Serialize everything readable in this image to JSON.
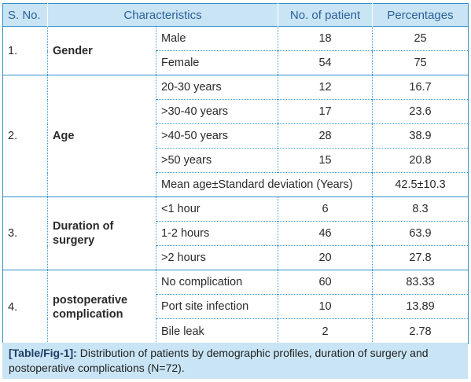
{
  "header": {
    "sno": "S. No.",
    "characteristics": "Characteristics",
    "patients": "No. of patient",
    "percentages": "Percentages"
  },
  "groups": {
    "gender": {
      "sno": "1.",
      "label": "Gender",
      "rows": [
        {
          "sub": "Male",
          "n": "18",
          "pct": "25"
        },
        {
          "sub": "Female",
          "n": "54",
          "pct": "75"
        }
      ]
    },
    "age": {
      "sno": "2.",
      "label": "Age",
      "rows": [
        {
          "sub": "20-30 years",
          "n": "12",
          "pct": "16.7"
        },
        {
          "sub": ">30-40 years",
          "n": "17",
          "pct": "23.6"
        },
        {
          "sub": ">40-50 years",
          "n": "28",
          "pct": "38.9"
        },
        {
          "sub": ">50 years",
          "n": "15",
          "pct": "20.8"
        }
      ],
      "mean_label": "Mean age±Standard deviation (Years)",
      "mean_value": "42.5±10.3"
    },
    "duration": {
      "sno": "3.",
      "label": "Duration of surgery",
      "rows": [
        {
          "sub": "<1 hour",
          "n": "6",
          "pct": "8.3"
        },
        {
          "sub": "1-2 hours",
          "n": "46",
          "pct": "63.9"
        },
        {
          "sub": ">2 hours",
          "n": "20",
          "pct": "27.8"
        }
      ]
    },
    "complication": {
      "sno": "4.",
      "label": "postoperative complication",
      "rows": [
        {
          "sub": "No complication",
          "n": "60",
          "pct": "83.33"
        },
        {
          "sub": "Port site infection",
          "n": "10",
          "pct": "13.89"
        },
        {
          "sub": "Bile leak",
          "n": "2",
          "pct": "2.78"
        }
      ]
    }
  },
  "caption": {
    "tag": "[Table/Fig-1]:",
    "text": " Distribution of patients by demographic profiles, duration of surgery and postoperative complications (N=72)."
  },
  "colors": {
    "border": "#2f8fc9",
    "header_bg": "#c9e5f5",
    "header_text": "#2c5f9a"
  }
}
